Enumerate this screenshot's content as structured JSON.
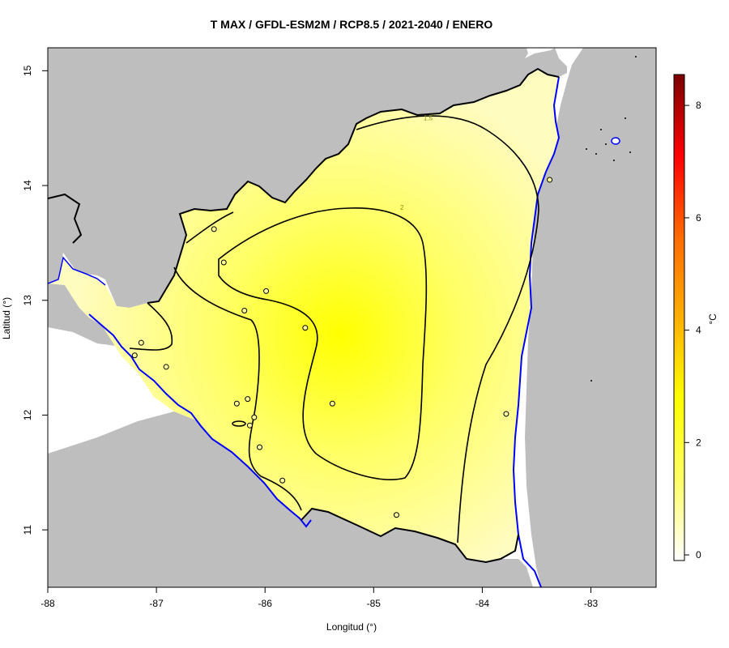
{
  "title": "T MAX / GFDL-ESM2M / RCP8.5 / 2021-2040 / ENERO",
  "x_axis": {
    "label": "Longitud (°)",
    "ticks": [
      {
        "value": -88,
        "label": "-88"
      },
      {
        "value": -87,
        "label": "-87"
      },
      {
        "value": -86,
        "label": "-86"
      },
      {
        "value": -85,
        "label": "-85"
      },
      {
        "value": -84,
        "label": "-84"
      },
      {
        "value": -83,
        "label": "-83"
      }
    ],
    "range": [
      -88,
      -82.4
    ]
  },
  "y_axis": {
    "label": "Latitud (°)",
    "ticks": [
      {
        "value": 11,
        "label": "11"
      },
      {
        "value": 12,
        "label": "12"
      },
      {
        "value": 13,
        "label": "13"
      },
      {
        "value": 14,
        "label": "14"
      },
      {
        "value": 15,
        "label": "15"
      }
    ],
    "range": [
      10.5,
      15.2
    ]
  },
  "colorbar": {
    "unit": "°C",
    "ticks": [
      {
        "value": 0,
        "label": "0"
      },
      {
        "value": 2,
        "label": "2"
      },
      {
        "value": 4,
        "label": "4"
      },
      {
        "value": 6,
        "label": "6"
      },
      {
        "value": 8,
        "label": "8"
      }
    ],
    "range": [
      -0.1,
      8.55
    ],
    "colors": [
      "#ffffff",
      "#ffff66",
      "#ffff00",
      "#ffb000",
      "#ff6a00",
      "#ff0000",
      "#7a0000"
    ]
  },
  "colors": {
    "land_other": "#bebebe",
    "sea": "#ffffff",
    "coast": "#0000ff",
    "border": "#000000",
    "field_low": "#fffcc0",
    "field_mid": "#ffff66",
    "field_high": "#ffff00"
  },
  "contour_labels": [
    {
      "text": "1.5",
      "lon": -84.5,
      "lat": 14.59
    },
    {
      "text": "2",
      "lon": -84.74,
      "lat": 13.81
    }
  ],
  "chart_data": {
    "type": "scatter",
    "title": "T MAX / GFDL-ESM2M / RCP8.5 / 2021-2040 / ENERO",
    "xlabel": "Longitud (°)",
    "ylabel": "Latitud (°)",
    "xlim": [
      -88,
      -82.4
    ],
    "ylim": [
      10.5,
      15.2
    ],
    "colorbar_label": "°C",
    "colorbar_range": [
      0,
      8.5
    ],
    "contour_levels": [
      1.5,
      2
    ],
    "stations": [
      {
        "lon": -86.47,
        "lat": 13.62
      },
      {
        "lon": -86.38,
        "lat": 13.33
      },
      {
        "lon": -85.99,
        "lat": 13.08
      },
      {
        "lon": -86.19,
        "lat": 12.91
      },
      {
        "lon": -85.63,
        "lat": 12.76
      },
      {
        "lon": -87.14,
        "lat": 12.63
      },
      {
        "lon": -87.2,
        "lat": 12.52
      },
      {
        "lon": -86.91,
        "lat": 12.42
      },
      {
        "lon": -86.16,
        "lat": 12.14
      },
      {
        "lon": -86.26,
        "lat": 12.1
      },
      {
        "lon": -85.38,
        "lat": 12.1
      },
      {
        "lon": -86.1,
        "lat": 11.98
      },
      {
        "lon": -86.14,
        "lat": 11.91
      },
      {
        "lon": -86.05,
        "lat": 11.72
      },
      {
        "lon": -85.84,
        "lat": 11.43
      },
      {
        "lon": -84.79,
        "lat": 11.13
      },
      {
        "lon": -83.78,
        "lat": 12.01
      },
      {
        "lon": -83.38,
        "lat": 14.05
      }
    ]
  }
}
